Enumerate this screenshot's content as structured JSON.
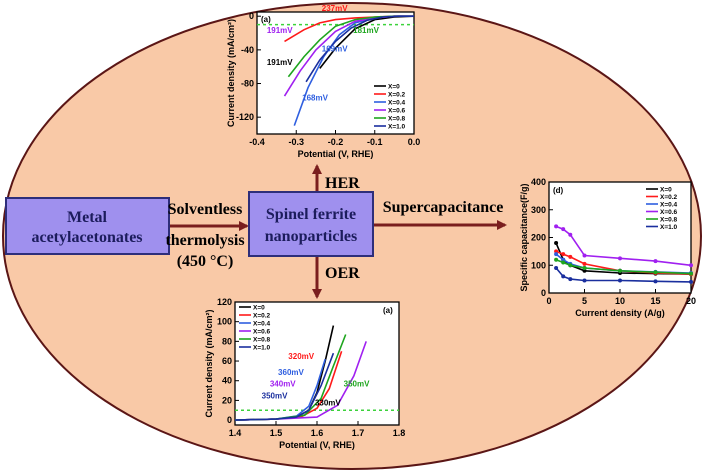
{
  "colors": {
    "ellipse_fill": "#f9c9a7",
    "ellipse_stroke": "#5b1616",
    "box_fill": "#9f90ee",
    "box_stroke": "#2e2e7a",
    "arrow": "#7a1e1e",
    "box_text": "#1c1c5c",
    "label_text": "#000000"
  },
  "labels": {
    "metal_line1": "Metal",
    "metal_line2": "acetylacetonates",
    "spinel_line1": "Spinel ferrite",
    "spinel_line2": "nanoparticles",
    "solventless": "Solventless",
    "thermolysis": "thermolysis",
    "temperature": "(450 °C)",
    "her": "HER",
    "oer": "OER",
    "supercap": "Supercapacitance"
  },
  "chart_data": [
    {
      "type": "line",
      "panel": "(a)",
      "xlabel": "Potential (V, RHE)",
      "ylabel": "Current density (mA/cm²)",
      "xlim": [
        -0.4,
        0.0
      ],
      "ylim": [
        -140,
        5
      ],
      "xticks": [
        "-0.4",
        "-0.3",
        "-0.2",
        "-0.1",
        "0.0"
      ],
      "yticks": [
        "0",
        "-40",
        "-80",
        "-120"
      ],
      "reference_line": -10,
      "legend_position": "bottom-right",
      "series": [
        {
          "name": "X=0",
          "color": "#000000",
          "x": [
            -0.24,
            -0.2,
            -0.15,
            -0.1,
            -0.05,
            0.0
          ],
          "y": [
            -62,
            -38,
            -15,
            -4,
            -1,
            0
          ]
        },
        {
          "name": "X=0.2",
          "color": "#ff1a1a",
          "x": [
            -0.33,
            -0.28,
            -0.24,
            -0.2,
            -0.15,
            -0.1,
            -0.05,
            0.0
          ],
          "y": [
            -30,
            -16,
            -8,
            -4,
            -2,
            -1,
            0,
            0
          ]
        },
        {
          "name": "X=0.4",
          "color": "#2f5fe0",
          "x": [
            -0.305,
            -0.27,
            -0.23,
            -0.19,
            -0.15,
            -0.1,
            -0.05,
            0.0
          ],
          "y": [
            -130,
            -85,
            -48,
            -22,
            -8,
            -2,
            0,
            0
          ]
        },
        {
          "name": "X=0.6",
          "color": "#a020f0",
          "x": [
            -0.33,
            -0.29,
            -0.25,
            -0.2,
            -0.15,
            -0.1,
            -0.05,
            0.0
          ],
          "y": [
            -95,
            -65,
            -40,
            -18,
            -6,
            -2,
            0,
            0
          ]
        },
        {
          "name": "X=0.8",
          "color": "#1ea51e",
          "x": [
            -0.32,
            -0.28,
            -0.24,
            -0.2,
            -0.15,
            -0.1,
            -0.05,
            0.0
          ],
          "y": [
            -72,
            -48,
            -28,
            -12,
            -4,
            -1,
            0,
            0
          ]
        },
        {
          "name": "X=1.0",
          "color": "#1a2f9e",
          "x": [
            -0.275,
            -0.24,
            -0.2,
            -0.16,
            -0.12,
            -0.08,
            -0.04,
            0.0
          ],
          "y": [
            -78,
            -52,
            -30,
            -14,
            -5,
            -1,
            0,
            0
          ]
        }
      ],
      "annotations": [
        {
          "text": "237mV",
          "color": "#ff1a1a",
          "x": -0.235,
          "y": 6
        },
        {
          "text": "191mV",
          "color": "#a020f0",
          "x": -0.375,
          "y": -20
        },
        {
          "text": "181mV",
          "color": "#1ea51e",
          "x": -0.155,
          "y": -20
        },
        {
          "text": "169mV",
          "color": "#2f5fe0",
          "x": -0.235,
          "y": -42
        },
        {
          "text": "191mV",
          "color": "#000000",
          "x": -0.375,
          "y": -58
        },
        {
          "text": "168mV",
          "color": "#2f5fe0",
          "x": -0.285,
          "y": -100
        }
      ]
    },
    {
      "type": "line",
      "panel": "(d)",
      "xlabel": "Current density (A/g)",
      "ylabel": "Specific capacitance(F/g)",
      "xlim": [
        0,
        20
      ],
      "ylim": [
        0,
        400
      ],
      "xticks": [
        "0",
        "5",
        "10",
        "15",
        "20"
      ],
      "yticks": [
        "0",
        "100",
        "200",
        "300",
        "400"
      ],
      "legend_position": "top-right",
      "series": [
        {
          "name": "X=0",
          "color": "#000000",
          "x": [
            1,
            2,
            3,
            5,
            10,
            15,
            20
          ],
          "y": [
            180,
            120,
            100,
            80,
            72,
            70,
            68
          ]
        },
        {
          "name": "X=0.2",
          "color": "#ff1a1a",
          "x": [
            1,
            2,
            3,
            5,
            10,
            15,
            20
          ],
          "y": [
            150,
            140,
            130,
            105,
            80,
            72,
            68
          ]
        },
        {
          "name": "X=0.4",
          "color": "#2f5fe0",
          "x": [
            1,
            2,
            3,
            5,
            10,
            15,
            20
          ],
          "y": [
            140,
            120,
            105,
            90,
            80,
            76,
            72
          ]
        },
        {
          "name": "X=0.6",
          "color": "#a020f0",
          "x": [
            1,
            2,
            3,
            5,
            10,
            15,
            20
          ],
          "y": [
            240,
            230,
            210,
            135,
            125,
            115,
            100
          ]
        },
        {
          "name": "X=0.8",
          "color": "#1ea51e",
          "x": [
            1,
            2,
            3,
            5,
            10,
            15,
            20
          ],
          "y": [
            120,
            110,
            100,
            90,
            80,
            75,
            70
          ]
        },
        {
          "name": "X=1.0",
          "color": "#1a2f9e",
          "x": [
            1,
            2,
            3,
            5,
            10,
            15,
            20
          ],
          "y": [
            90,
            60,
            50,
            45,
            45,
            42,
            40
          ]
        }
      ]
    },
    {
      "type": "line",
      "panel": "(a)",
      "xlabel": "Potential (V, RHE)",
      "ylabel": "Current density (mA/cm²)",
      "xlim": [
        1.4,
        1.8
      ],
      "ylim": [
        -5,
        120
      ],
      "xticks": [
        "1.4",
        "1.5",
        "1.6",
        "1.7",
        "1.8"
      ],
      "yticks": [
        "0",
        "20",
        "40",
        "60",
        "80",
        "100",
        "120"
      ],
      "reference_line": 10,
      "legend_position": "top-left",
      "series": [
        {
          "name": "X=0",
          "color": "#000000",
          "x": [
            1.4,
            1.5,
            1.55,
            1.58,
            1.6,
            1.62,
            1.64
          ],
          "y": [
            0,
            1,
            3,
            10,
            28,
            60,
            96
          ]
        },
        {
          "name": "X=0.2",
          "color": "#ff1a1a",
          "x": [
            1.4,
            1.5,
            1.56,
            1.6,
            1.63,
            1.66
          ],
          "y": [
            0,
            1,
            3,
            12,
            32,
            70
          ]
        },
        {
          "name": "X=0.4",
          "color": "#2f5fe0",
          "x": [
            1.4,
            1.5,
            1.55,
            1.58,
            1.6,
            1.62
          ],
          "y": [
            0,
            1,
            4,
            14,
            35,
            62
          ]
        },
        {
          "name": "X=0.6",
          "color": "#a020f0",
          "x": [
            1.4,
            1.5,
            1.6,
            1.65,
            1.69,
            1.72
          ],
          "y": [
            0,
            1,
            3,
            15,
            45,
            80
          ]
        },
        {
          "name": "X=0.8",
          "color": "#1ea51e",
          "x": [
            1.4,
            1.5,
            1.57,
            1.61,
            1.64,
            1.67
          ],
          "y": [
            0,
            1,
            5,
            22,
            55,
            87
          ]
        },
        {
          "name": "X=1.0",
          "color": "#1a2f9e",
          "x": [
            1.4,
            1.5,
            1.55,
            1.58,
            1.61,
            1.64
          ],
          "y": [
            0,
            1,
            3,
            10,
            35,
            68
          ]
        }
      ],
      "annotations": [
        {
          "text": "320mV",
          "color": "#ff1a1a",
          "x": 1.53,
          "y": 62
        },
        {
          "text": "360mV",
          "color": "#2f5fe0",
          "x": 1.505,
          "y": 46
        },
        {
          "text": "340mV",
          "color": "#a020f0",
          "x": 1.485,
          "y": 34
        },
        {
          "text": "350mV",
          "color": "#1ea51e",
          "x": 1.665,
          "y": 34
        },
        {
          "text": "350mV",
          "color": "#1a2f9e",
          "x": 1.465,
          "y": 22
        },
        {
          "text": "330mV",
          "color": "#000000",
          "x": 1.595,
          "y": 15
        }
      ]
    }
  ]
}
